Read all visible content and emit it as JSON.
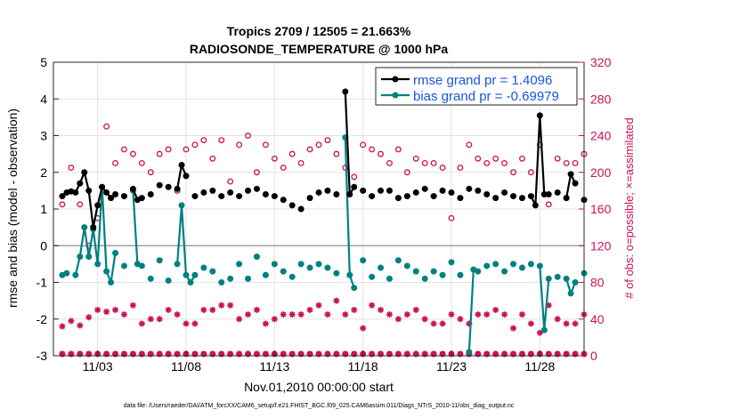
{
  "chart_data": {
    "type": "line",
    "title_line1": "Tropics 2709 / 12505 = 21.663%",
    "title_line2": "RADIOSONDE_TEMPERATURE @ 1000 hPa",
    "xlabel": "Nov.01,2010 00:00:00 start",
    "ylabel_left": "rmse and bias (model - observation)",
    "ylabel_right": "# of obs: o=possible; ×=assimilated",
    "ylim_left": [
      -3,
      5
    ],
    "yticks_left": [
      "-3",
      "-2",
      "-1",
      "0",
      "1",
      "2",
      "3",
      "4",
      "5"
    ],
    "ylim_right": [
      0,
      320
    ],
    "yticks_right": [
      "0",
      "40",
      "80",
      "120",
      "160",
      "200",
      "240",
      "280",
      "320"
    ],
    "xlim_days": [
      0.5,
      30.5
    ],
    "xticks": [
      {
        "day": 3,
        "label": "11/03"
      },
      {
        "day": 8,
        "label": "11/08"
      },
      {
        "day": 13,
        "label": "11/13"
      },
      {
        "day": 18,
        "label": "11/18"
      },
      {
        "day": 23,
        "label": "11/23"
      },
      {
        "day": 28,
        "label": "11/28"
      }
    ],
    "legend": [
      {
        "label": "rmse grand pr = 1.4096",
        "color": "#000000"
      },
      {
        "label": "bias grand pr = -0.69979",
        "color": "#008080"
      }
    ],
    "footer": "data file: /Users/raeder/DAI/ATM_forcXX/CAM6_setup/f.e21.FHIST_BGC.f09_025.CAM6assim.011/Diags_NTrS_2010-11/obs_diag_output.nc",
    "series": {
      "rmse": {
        "name": "rmse",
        "color": "#000000",
        "points": [
          [
            1,
            1.35
          ],
          [
            1.25,
            1.45
          ],
          [
            1.5,
            1.48
          ],
          [
            1.75,
            1.45
          ],
          [
            2,
            1.7
          ],
          [
            2.25,
            2.0
          ],
          [
            2.5,
            1.5
          ],
          [
            2.75,
            0.5
          ],
          [
            3,
            1.1
          ],
          [
            3.25,
            1.6
          ],
          [
            3.5,
            1.45
          ],
          [
            3.75,
            1.3
          ],
          [
            4,
            1.4
          ],
          [
            4.5,
            1.35
          ],
          [
            5,
            1.55
          ],
          [
            5.25,
            1.25
          ],
          [
            5.5,
            1.3
          ],
          [
            6,
            1.4
          ],
          [
            6.5,
            1.65
          ],
          [
            7,
            1.6
          ],
          [
            7.5,
            1.55
          ],
          [
            7.75,
            2.2
          ],
          [
            8,
            1.9
          ],
          [
            8.5,
            1.35
          ],
          [
            9,
            1.45
          ],
          [
            9.5,
            1.5
          ],
          [
            10,
            1.35
          ],
          [
            10.5,
            1.45
          ],
          [
            11,
            1.35
          ],
          [
            11.5,
            1.5
          ],
          [
            12,
            1.55
          ],
          [
            12.5,
            1.4
          ],
          [
            13,
            1.35
          ],
          [
            13.5,
            1.25
          ],
          [
            14,
            1.1
          ],
          [
            14.5,
            1.0
          ],
          [
            15,
            1.3
          ],
          [
            15.5,
            1.45
          ],
          [
            16,
            1.5
          ],
          [
            16.5,
            1.4
          ],
          [
            17,
            4.2
          ],
          [
            17.25,
            1.4
          ],
          [
            17.5,
            1.6
          ],
          [
            18,
            1.5
          ],
          [
            18.5,
            1.35
          ],
          [
            19,
            1.5
          ],
          [
            19.5,
            1.5
          ],
          [
            20,
            1.3
          ],
          [
            20.5,
            1.35
          ],
          [
            21,
            1.45
          ],
          [
            21.5,
            1.55
          ],
          [
            22,
            1.35
          ],
          [
            22.5,
            1.5
          ],
          [
            23,
            1.45
          ],
          [
            23.5,
            1.3
          ],
          [
            24,
            1.55
          ],
          [
            24.5,
            1.5
          ],
          [
            25,
            1.4
          ],
          [
            25.5,
            1.3
          ],
          [
            26,
            1.45
          ],
          [
            26.5,
            1.35
          ],
          [
            27,
            1.3
          ],
          [
            27.5,
            1.35
          ],
          [
            27.75,
            1.1
          ],
          [
            28,
            3.55
          ],
          [
            28.25,
            1.4
          ],
          [
            28.5,
            1.4
          ],
          [
            29,
            1.45
          ],
          [
            29.5,
            1.3
          ],
          [
            29.75,
            1.95
          ],
          [
            30,
            1.7
          ],
          [
            30.5,
            1.25
          ]
        ]
      },
      "bias": {
        "name": "bias",
        "color": "#008080",
        "points": [
          [
            1,
            -0.8
          ],
          [
            1.25,
            -0.75
          ],
          [
            1.75,
            -0.8
          ],
          [
            2,
            -0.3
          ],
          [
            2.25,
            0.5
          ],
          [
            2.5,
            -0.3
          ],
          [
            2.75,
            0.45
          ],
          [
            3,
            -0.5
          ],
          [
            3.25,
            1.6
          ],
          [
            3.5,
            -0.7
          ],
          [
            3.75,
            -1.0
          ],
          [
            4,
            -0.2
          ],
          [
            4.5,
            -0.55
          ],
          [
            5,
            1.5
          ],
          [
            5.25,
            -0.5
          ],
          [
            5.5,
            -0.55
          ],
          [
            6,
            -0.9
          ],
          [
            6.5,
            -0.4
          ],
          [
            7,
            -0.95
          ],
          [
            7.5,
            -0.5
          ],
          [
            7.75,
            1.1
          ],
          [
            8,
            -0.8
          ],
          [
            8.25,
            -1.0
          ],
          [
            8.5,
            -0.8
          ],
          [
            9,
            -0.6
          ],
          [
            9.5,
            -0.7
          ],
          [
            10,
            -1.0
          ],
          [
            10.5,
            -0.9
          ],
          [
            11,
            -0.5
          ],
          [
            11.5,
            -0.9
          ],
          [
            12,
            -0.3
          ],
          [
            12.5,
            -0.8
          ],
          [
            13,
            -0.5
          ],
          [
            13.5,
            -0.7
          ],
          [
            14,
            -0.85
          ],
          [
            14.5,
            -0.5
          ],
          [
            15,
            -0.6
          ],
          [
            15.5,
            -0.5
          ],
          [
            16,
            -0.6
          ],
          [
            16.5,
            -0.75
          ],
          [
            17,
            2.95
          ],
          [
            17.25,
            -0.8
          ],
          [
            17.5,
            -1.15
          ],
          [
            18,
            -0.4
          ],
          [
            18.5,
            -0.85
          ],
          [
            19,
            -0.6
          ],
          [
            19.5,
            -0.9
          ],
          [
            20,
            -0.4
          ],
          [
            20.5,
            -0.55
          ],
          [
            21,
            -0.7
          ],
          [
            21.5,
            -0.9
          ],
          [
            22,
            -0.7
          ],
          [
            22.5,
            -0.8
          ],
          [
            23,
            -0.45
          ],
          [
            23.5,
            -0.8
          ],
          [
            24,
            -2.9
          ],
          [
            24.25,
            -0.65
          ],
          [
            24.5,
            -0.7
          ],
          [
            25,
            -0.55
          ],
          [
            25.5,
            -0.5
          ],
          [
            26,
            -0.7
          ],
          [
            26.5,
            -0.5
          ],
          [
            27,
            -0.6
          ],
          [
            27.5,
            -0.5
          ],
          [
            28,
            -0.55
          ],
          [
            28.25,
            -2.3
          ],
          [
            28.5,
            -0.9
          ],
          [
            29,
            -0.85
          ],
          [
            29.5,
            -0.9
          ],
          [
            29.75,
            -1.3
          ],
          [
            30,
            -1.0
          ],
          [
            30.5,
            -0.75
          ]
        ]
      },
      "obs_possible": {
        "name": "possible",
        "color": "#cc1155",
        "points": [
          [
            1,
            165
          ],
          [
            1.5,
            205
          ],
          [
            2,
            165
          ],
          [
            2.5,
            120
          ],
          [
            3,
            150
          ],
          [
            3.5,
            250
          ],
          [
            4,
            210
          ],
          [
            4.5,
            225
          ],
          [
            5,
            220
          ],
          [
            5.5,
            210
          ],
          [
            6,
            200
          ],
          [
            6.5,
            220
          ],
          [
            7,
            225
          ],
          [
            7.5,
            180
          ],
          [
            8,
            225
          ],
          [
            8.5,
            230
          ],
          [
            9,
            235
          ],
          [
            9.5,
            215
          ],
          [
            10,
            235
          ],
          [
            10.5,
            190
          ],
          [
            11,
            230
          ],
          [
            11.5,
            240
          ],
          [
            12,
            200
          ],
          [
            12.5,
            230
          ],
          [
            13,
            215
          ],
          [
            13.5,
            205
          ],
          [
            14,
            220
          ],
          [
            14.5,
            210
          ],
          [
            15,
            225
          ],
          [
            15.5,
            230
          ],
          [
            16,
            235
          ],
          [
            16.5,
            220
          ],
          [
            17,
            205
          ],
          [
            17.5,
            195
          ],
          [
            18,
            230
          ],
          [
            18.5,
            225
          ],
          [
            19,
            220
          ],
          [
            19.5,
            210
          ],
          [
            20,
            225
          ],
          [
            20.5,
            200
          ],
          [
            21,
            215
          ],
          [
            21.5,
            210
          ],
          [
            22,
            210
          ],
          [
            22.5,
            205
          ],
          [
            23,
            150
          ],
          [
            23.5,
            205
          ],
          [
            24,
            230
          ],
          [
            24.5,
            215
          ],
          [
            25,
            210
          ],
          [
            25.5,
            215
          ],
          [
            26,
            210
          ],
          [
            26.5,
            200
          ],
          [
            27,
            215
          ],
          [
            27.5,
            200
          ],
          [
            28,
            230
          ],
          [
            28.5,
            165
          ],
          [
            29,
            215
          ],
          [
            29.5,
            210
          ],
          [
            30,
            210
          ],
          [
            30.5,
            220
          ]
        ]
      },
      "obs_assimilated": {
        "name": "assimilated",
        "color": "#cc1155",
        "points": [
          [
            1,
            32
          ],
          [
            1.5,
            38
          ],
          [
            2,
            33
          ],
          [
            2.5,
            42
          ],
          [
            3,
            50
          ],
          [
            3.5,
            48
          ],
          [
            4,
            50
          ],
          [
            4.5,
            45
          ],
          [
            5,
            55
          ],
          [
            5.5,
            35
          ],
          [
            6,
            40
          ],
          [
            6.5,
            40
          ],
          [
            7,
            50
          ],
          [
            7.5,
            45
          ],
          [
            8,
            35
          ],
          [
            8.5,
            35
          ],
          [
            9,
            50
          ],
          [
            9.5,
            50
          ],
          [
            10,
            55
          ],
          [
            10.5,
            55
          ],
          [
            11,
            40
          ],
          [
            11.5,
            45
          ],
          [
            12,
            50
          ],
          [
            12.5,
            35
          ],
          [
            13,
            40
          ],
          [
            13.5,
            45
          ],
          [
            14,
            45
          ],
          [
            14.5,
            45
          ],
          [
            15,
            50
          ],
          [
            15.5,
            55
          ],
          [
            16,
            45
          ],
          [
            16.5,
            60
          ],
          [
            17,
            45
          ],
          [
            17.5,
            50
          ],
          [
            18,
            30
          ],
          [
            18.5,
            55
          ],
          [
            19,
            50
          ],
          [
            19.5,
            45
          ],
          [
            20,
            40
          ],
          [
            20.5,
            45
          ],
          [
            21,
            50
          ],
          [
            21.5,
            40
          ],
          [
            22,
            35
          ],
          [
            22.5,
            35
          ],
          [
            23,
            45
          ],
          [
            23.5,
            40
          ],
          [
            24,
            35
          ],
          [
            24.5,
            45
          ],
          [
            25,
            45
          ],
          [
            25.5,
            50
          ],
          [
            26,
            45
          ],
          [
            26.5,
            30
          ],
          [
            27,
            45
          ],
          [
            27.5,
            35
          ],
          [
            28,
            25
          ],
          [
            28.5,
            55
          ],
          [
            29,
            40
          ],
          [
            29.5,
            35
          ],
          [
            30,
            35
          ],
          [
            30.5,
            45
          ]
        ]
      }
    }
  }
}
